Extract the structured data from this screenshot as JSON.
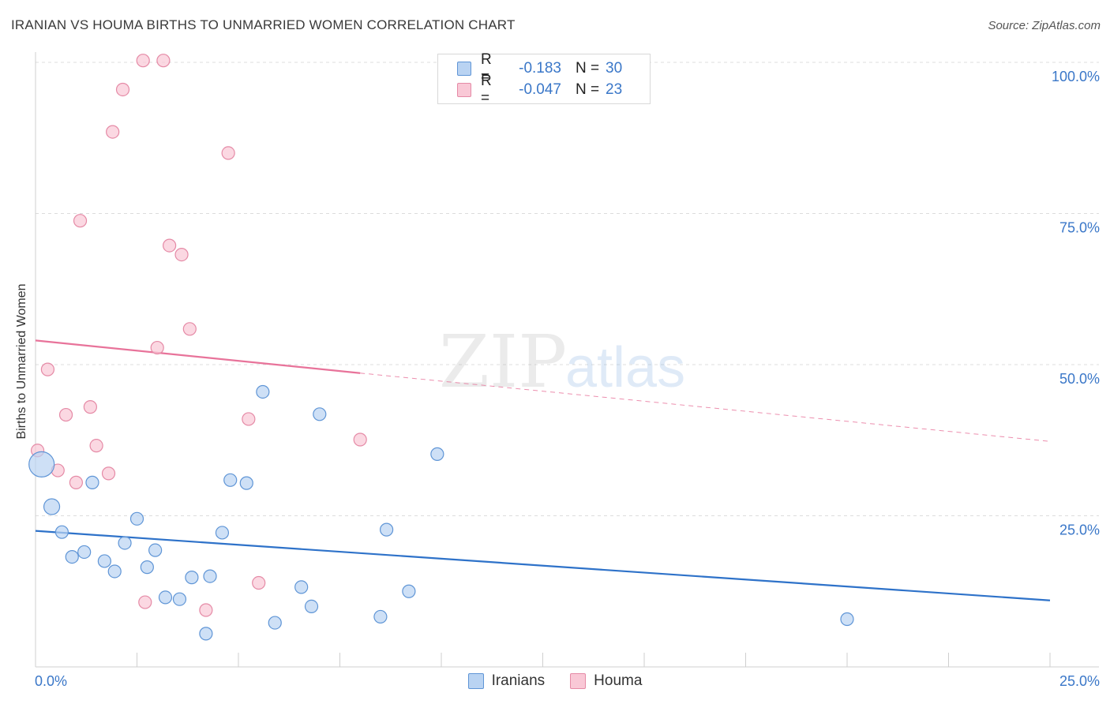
{
  "header": {
    "title": "IRANIAN VS HOUMA BIRTHS TO UNMARRIED WOMEN CORRELATION CHART",
    "source": "Source: ZipAtlas.com"
  },
  "watermark": {
    "zip": "ZIP",
    "atlas": "atlas"
  },
  "legend": {
    "rows": [
      {
        "r_label": "R =",
        "r_value": "-0.183",
        "n_label": "N =",
        "n_value": "30"
      },
      {
        "r_label": "R =",
        "r_value": "-0.047",
        "n_label": "N =",
        "n_value": "23"
      }
    ]
  },
  "colors": {
    "blue_fill": "#b9d3f2",
    "blue_stroke": "#5f95d6",
    "blue_line": "#2e72c9",
    "pink_fill": "#f9c8d6",
    "pink_stroke": "#e58aa6",
    "pink_line": "#e8739a",
    "axis_text": "#3a77c8",
    "grid": "#dcdcdc"
  },
  "chart_data": {
    "type": "scatter",
    "title": "IRANIAN VS HOUMA BIRTHS TO UNMARRIED WOMEN CORRELATION CHART",
    "ylabel": "Births to Unmarried Women",
    "xlabel": "",
    "xlim": [
      0,
      25
    ],
    "ylim": [
      0,
      100
    ],
    "x_tick_labels": [
      "0.0%",
      "25.0%"
    ],
    "y_tick_labels": [
      "100.0%",
      "75.0%",
      "50.0%",
      "25.0%"
    ],
    "y_ticks": [
      100,
      75,
      50,
      25
    ],
    "grid": true,
    "legend_position": "top-center",
    "series": [
      {
        "name": "Iranians",
        "color": "#5f95d6",
        "points": [
          [
            0.15,
            33.5,
            16
          ],
          [
            0.4,
            26.5,
            10
          ],
          [
            0.65,
            22.3,
            8
          ],
          [
            0.9,
            18.2,
            8
          ],
          [
            1.2,
            19.0,
            8
          ],
          [
            1.4,
            30.5,
            8
          ],
          [
            1.7,
            17.5,
            8
          ],
          [
            1.95,
            15.8,
            8
          ],
          [
            2.2,
            20.5,
            8
          ],
          [
            2.5,
            24.5,
            8
          ],
          [
            2.75,
            16.5,
            8
          ],
          [
            2.95,
            19.3,
            8
          ],
          [
            3.2,
            11.5,
            8
          ],
          [
            3.55,
            11.2,
            8
          ],
          [
            3.85,
            14.8,
            8
          ],
          [
            4.2,
            5.5,
            8
          ],
          [
            4.3,
            15.0,
            8
          ],
          [
            4.6,
            22.2,
            8
          ],
          [
            4.8,
            30.9,
            8
          ],
          [
            5.2,
            30.4,
            8
          ],
          [
            5.6,
            45.5,
            8
          ],
          [
            5.9,
            7.3,
            8
          ],
          [
            6.55,
            13.2,
            8
          ],
          [
            6.8,
            10.0,
            8
          ],
          [
            7.0,
            41.8,
            8
          ],
          [
            8.5,
            8.3,
            8
          ],
          [
            8.65,
            22.7,
            8
          ],
          [
            9.2,
            12.5,
            8
          ],
          [
            9.9,
            35.2,
            8
          ],
          [
            20.0,
            7.9,
            8
          ]
        ],
        "trend": {
          "x0": 0,
          "y0": 22.5,
          "x1": 25,
          "y1": 11.0
        }
      },
      {
        "name": "Houma",
        "color": "#e58aa6",
        "points": [
          [
            0.05,
            35.8,
            8
          ],
          [
            0.3,
            49.2,
            8
          ],
          [
            0.55,
            32.5,
            8
          ],
          [
            0.75,
            41.7,
            8
          ],
          [
            1.0,
            30.5,
            8
          ],
          [
            1.1,
            73.8,
            8
          ],
          [
            1.35,
            43.0,
            8
          ],
          [
            1.5,
            36.6,
            8
          ],
          [
            1.8,
            32.0,
            8
          ],
          [
            1.9,
            88.5,
            8
          ],
          [
            2.15,
            95.5,
            8
          ],
          [
            2.65,
            100.3,
            8
          ],
          [
            2.7,
            10.7,
            8
          ],
          [
            3.0,
            52.8,
            8
          ],
          [
            3.15,
            100.3,
            8
          ],
          [
            3.3,
            69.7,
            8
          ],
          [
            3.6,
            68.2,
            8
          ],
          [
            3.8,
            55.9,
            8
          ],
          [
            4.2,
            9.4,
            8
          ],
          [
            4.75,
            85.0,
            8
          ],
          [
            5.25,
            41.0,
            8
          ],
          [
            5.5,
            13.9,
            8
          ],
          [
            8.0,
            37.6,
            8
          ]
        ],
        "trend": {
          "x0": 0,
          "y0": 54.0,
          "x1": 8.0,
          "y1": 48.6,
          "dash_x1": 25,
          "dash_y1": 37.3
        }
      }
    ]
  }
}
